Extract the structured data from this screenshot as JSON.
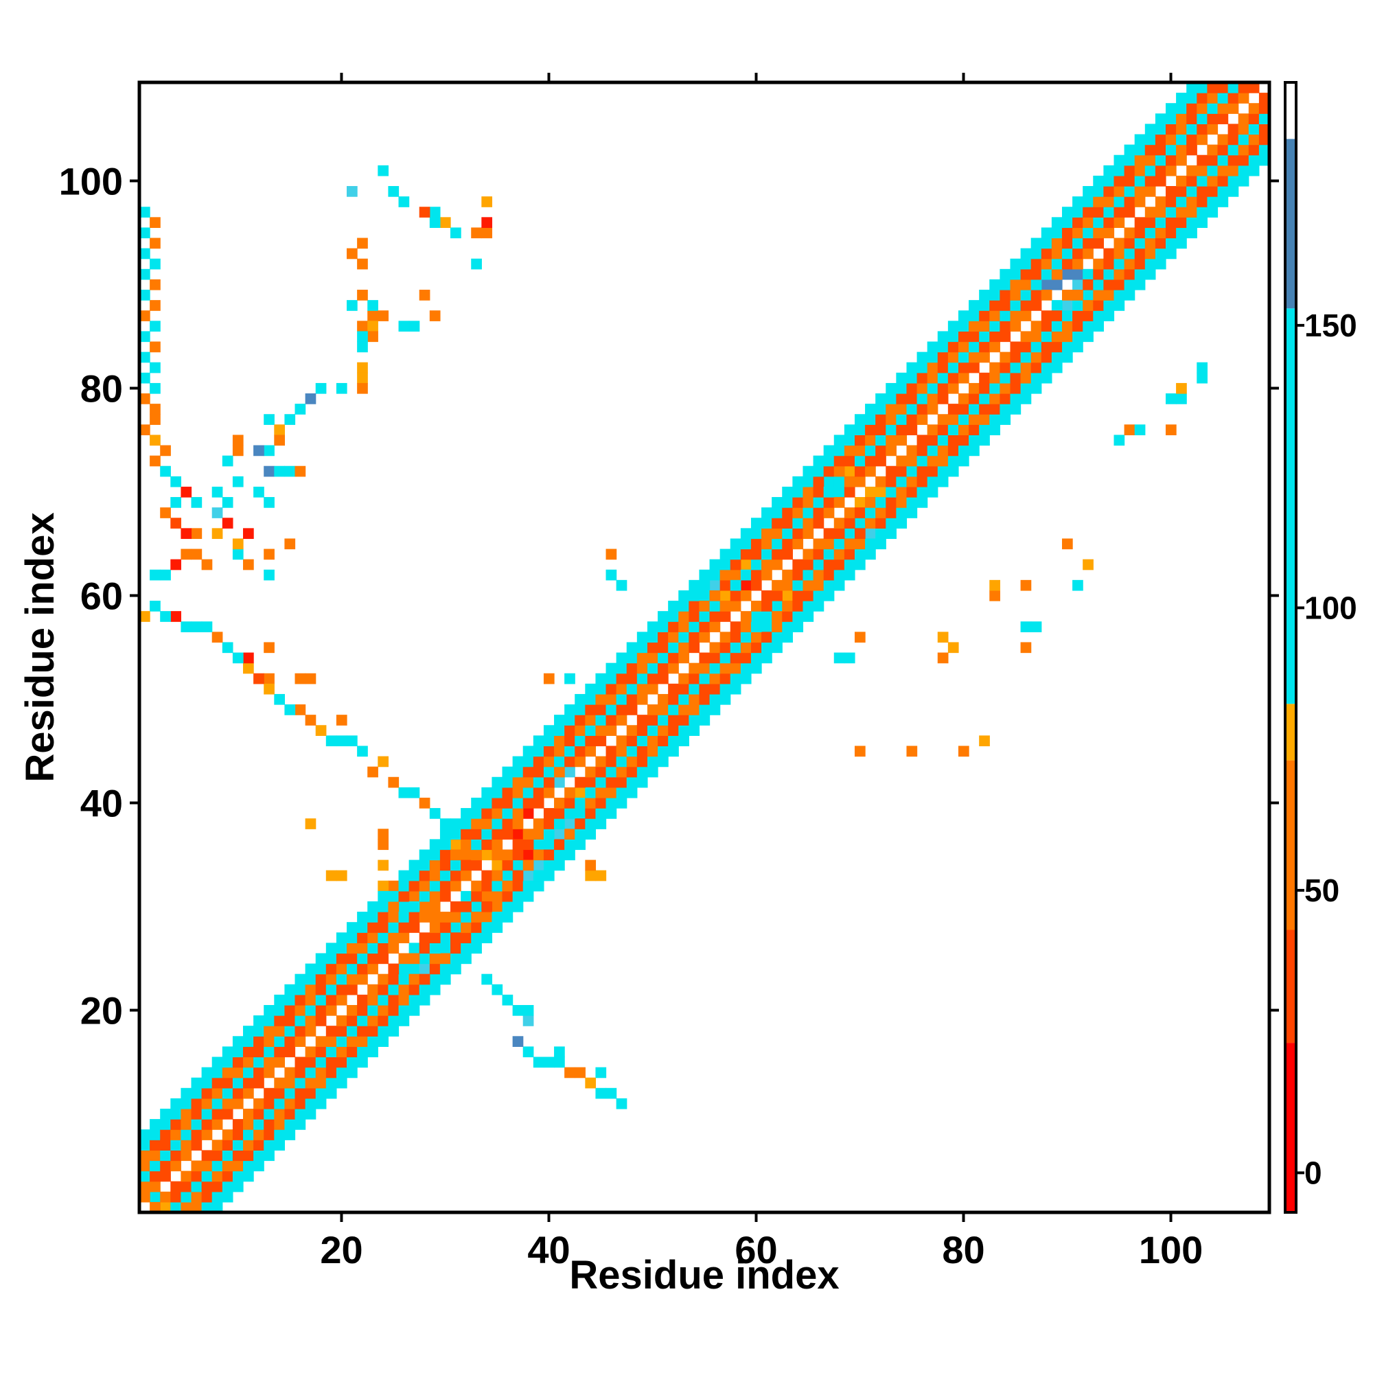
{
  "chart_data": {
    "type": "heatmap",
    "xlabel": "Residue index",
    "ylabel": "Residue index",
    "xlim": [
      1,
      109
    ],
    "ylim": [
      1,
      109
    ],
    "xticks": [
      20,
      40,
      60,
      80,
      100
    ],
    "yticks": [
      20,
      40,
      60,
      80,
      100
    ],
    "colorbar": {
      "ticks": [
        0,
        50,
        100,
        150
      ],
      "range": [
        -7,
        193
      ],
      "segments": [
        {
          "from": -7,
          "to": 23,
          "color": "#ff0000"
        },
        {
          "from": 23,
          "to": 43,
          "color": "#ff4400"
        },
        {
          "from": 43,
          "to": 73,
          "color": "#ff7700"
        },
        {
          "from": 73,
          "to": 83,
          "color": "#ffaa00"
        },
        {
          "from": 83,
          "to": 153,
          "color": "#00e5ee"
        },
        {
          "from": 153,
          "to": 183,
          "color": "#4682b4"
        },
        {
          "from": 183,
          "to": 193,
          "color": "#ffffff"
        }
      ]
    },
    "colors": {
      "red": "#ff1a00",
      "red_orange": "#ff4a00",
      "orange": "#ff7a00",
      "amber": "#ffa500",
      "cyan": "#00e5ee",
      "light_cyan": "#40d0e8",
      "steel_blue": "#4a86c0"
    },
    "legend_colors": [
      "red",
      "red_orange",
      "orange",
      "amber",
      "cyan",
      "light_cyan",
      "steel_blue"
    ],
    "band": {
      "start": 1,
      "end": 109,
      "pattern": [
        {
          "offset": 1,
          "color": "orange"
        },
        {
          "offset": 2,
          "color": "red_orange"
        },
        {
          "offset": 3,
          "color": "cyan"
        },
        {
          "offset": 4,
          "color": "orange"
        },
        {
          "offset": 5,
          "color": "red_orange"
        },
        {
          "offset": 6,
          "color": "cyan"
        },
        {
          "offset": 7,
          "color": "cyan"
        }
      ]
    },
    "cells": [
      [
        2,
        2,
        "cyan"
      ],
      [
        3,
        1,
        "amber"
      ],
      [
        3,
        2,
        "orange"
      ],
      [
        26,
        24,
        "cyan"
      ],
      [
        27,
        24,
        "cyan"
      ],
      [
        28,
        24,
        "light_cyan"
      ],
      [
        28,
        25,
        "cyan"
      ],
      [
        27,
        26,
        "cyan"
      ],
      [
        29,
        23,
        "cyan"
      ],
      [
        36,
        33,
        "cyan"
      ],
      [
        37,
        34,
        "cyan"
      ],
      [
        38,
        33,
        "light_cyan"
      ],
      [
        38,
        35,
        "red"
      ],
      [
        39,
        34,
        "light_cyan"
      ],
      [
        39,
        36,
        "cyan"
      ],
      [
        40,
        36,
        "cyan"
      ],
      [
        41,
        37,
        "light_cyan"
      ],
      [
        42,
        38,
        "light_cyan"
      ],
      [
        43,
        39,
        "cyan"
      ],
      [
        38,
        39,
        "red"
      ],
      [
        37,
        37,
        "red"
      ],
      [
        41,
        42,
        "light_cyan"
      ],
      [
        42,
        43,
        "light_cyan"
      ],
      [
        43,
        41,
        "amber"
      ],
      [
        44,
        42,
        "red_orange"
      ],
      [
        55,
        60,
        "cyan"
      ],
      [
        56,
        61,
        "light_cyan"
      ],
      [
        57,
        60,
        "amber"
      ],
      [
        58,
        62,
        "orange"
      ],
      [
        59,
        61,
        "red"
      ],
      [
        59,
        63,
        "amber"
      ],
      [
        60,
        58,
        "cyan"
      ],
      [
        61,
        57,
        "cyan"
      ],
      [
        62,
        59,
        "cyan"
      ],
      [
        63,
        60,
        "amber"
      ],
      [
        69,
        66,
        "cyan"
      ],
      [
        70,
        67,
        "cyan"
      ],
      [
        71,
        66,
        "light_cyan"
      ],
      [
        70,
        69,
        "amber"
      ],
      [
        71,
        70,
        "amber"
      ],
      [
        72,
        70,
        "amber"
      ],
      [
        68,
        70,
        "cyan"
      ],
      [
        67,
        71,
        "cyan"
      ],
      [
        69,
        72,
        "amber"
      ],
      [
        88,
        90,
        "steel_blue"
      ],
      [
        89,
        90,
        "steel_blue"
      ],
      [
        90,
        91,
        "steel_blue"
      ],
      [
        91,
        90,
        "light_cyan"
      ],
      [
        91,
        91,
        "steel_blue"
      ],
      [
        90,
        88,
        "light_cyan"
      ],
      [
        89,
        88,
        "cyan"
      ],
      [
        92,
        89,
        "cyan"
      ],
      [
        92,
        91,
        "cyan"
      ],
      [
        33,
        92,
        "cyan"
      ],
      [
        33,
        95,
        "orange"
      ],
      [
        34,
        95,
        "orange"
      ],
      [
        34,
        96,
        "red"
      ],
      [
        34,
        98,
        "amber"
      ],
      [
        31,
        95,
        "cyan"
      ],
      [
        30,
        96,
        "amber"
      ],
      [
        29,
        96,
        "cyan"
      ],
      [
        29,
        97,
        "cyan"
      ],
      [
        28,
        97,
        "red_orange"
      ],
      [
        26,
        98,
        "cyan"
      ],
      [
        25,
        99,
        "cyan"
      ],
      [
        21,
        99,
        "light_cyan"
      ],
      [
        24,
        101,
        "cyan"
      ],
      [
        21,
        88,
        "cyan"
      ],
      [
        23,
        87,
        "orange"
      ],
      [
        23,
        88,
        "cyan"
      ],
      [
        24,
        87,
        "orange"
      ],
      [
        22,
        86,
        "orange"
      ],
      [
        23,
        86,
        "amber"
      ],
      [
        23,
        85,
        "orange"
      ],
      [
        22,
        85,
        "cyan"
      ],
      [
        22,
        84,
        "cyan"
      ],
      [
        22,
        82,
        "amber"
      ],
      [
        22,
        81,
        "amber"
      ],
      [
        22,
        80,
        "orange"
      ],
      [
        20,
        80,
        "cyan"
      ],
      [
        18,
        80,
        "cyan"
      ],
      [
        17,
        79,
        "steel_blue"
      ],
      [
        16,
        78,
        "cyan"
      ],
      [
        15,
        77,
        "cyan"
      ],
      [
        13,
        77,
        "cyan"
      ],
      [
        14,
        76,
        "amber"
      ],
      [
        14,
        75,
        "orange"
      ],
      [
        13,
        74,
        "cyan"
      ],
      [
        12,
        74,
        "steel_blue"
      ],
      [
        10,
        74,
        "orange"
      ],
      [
        10,
        75,
        "orange"
      ],
      [
        9,
        73,
        "cyan"
      ],
      [
        10,
        71,
        "cyan"
      ],
      [
        12,
        70,
        "cyan"
      ],
      [
        8,
        70,
        "cyan"
      ],
      [
        8,
        68,
        "light_cyan"
      ],
      [
        9,
        69,
        "cyan"
      ],
      [
        8,
        66,
        "amber"
      ],
      [
        9,
        67,
        "red"
      ],
      [
        6,
        66,
        "orange"
      ],
      [
        15,
        65,
        "orange"
      ],
      [
        13,
        64,
        "orange"
      ],
      [
        11,
        63,
        "orange"
      ],
      [
        10,
        64,
        "cyan"
      ],
      [
        10,
        65,
        "amber"
      ],
      [
        11,
        66,
        "red"
      ],
      [
        13,
        62,
        "cyan"
      ],
      [
        13,
        69,
        "cyan"
      ],
      [
        13,
        72,
        "steel_blue"
      ],
      [
        14,
        72,
        "cyan"
      ],
      [
        15,
        72,
        "cyan"
      ],
      [
        16,
        72,
        "orange"
      ],
      [
        13,
        55,
        "orange"
      ],
      [
        13,
        52,
        "orange"
      ],
      [
        16,
        52,
        "orange"
      ],
      [
        17,
        52,
        "orange"
      ],
      [
        20,
        48,
        "orange"
      ],
      [
        24,
        34,
        "amber"
      ],
      [
        24,
        36,
        "orange"
      ],
      [
        24,
        37,
        "orange"
      ],
      [
        34,
        35,
        "amber"
      ],
      [
        22,
        89,
        "orange"
      ],
      [
        22,
        92,
        "orange"
      ],
      [
        21,
        93,
        "orange"
      ],
      [
        22,
        94,
        "orange"
      ],
      [
        29,
        87,
        "orange"
      ],
      [
        28,
        89,
        "orange"
      ],
      [
        27,
        86,
        "cyan"
      ],
      [
        26,
        86,
        "cyan"
      ],
      [
        17,
        38,
        "amber"
      ],
      [
        19,
        33,
        "amber"
      ],
      [
        20,
        33,
        "amber"
      ],
      [
        45,
        33,
        "amber"
      ],
      [
        44,
        33,
        "amber"
      ],
      [
        44,
        34,
        "orange"
      ],
      [
        40,
        52,
        "orange"
      ],
      [
        42,
        52,
        "cyan"
      ],
      [
        46,
        62,
        "cyan"
      ],
      [
        47,
        61,
        "cyan"
      ],
      [
        46,
        64,
        "orange"
      ],
      [
        68,
        54,
        "cyan"
      ],
      [
        69,
        54,
        "cyan"
      ],
      [
        70,
        56,
        "orange"
      ],
      [
        70,
        45,
        "orange"
      ],
      [
        75,
        45,
        "orange"
      ],
      [
        80,
        45,
        "orange"
      ],
      [
        82,
        46,
        "amber"
      ],
      [
        78,
        54,
        "orange"
      ],
      [
        78,
        56,
        "amber"
      ],
      [
        79,
        55,
        "amber"
      ],
      [
        86,
        55,
        "orange"
      ],
      [
        86,
        57,
        "cyan"
      ],
      [
        87,
        57,
        "cyan"
      ],
      [
        83,
        60,
        "orange"
      ],
      [
        83,
        61,
        "amber"
      ],
      [
        86,
        61,
        "orange"
      ],
      [
        90,
        65,
        "orange"
      ],
      [
        92,
        63,
        "amber"
      ],
      [
        91,
        61,
        "cyan"
      ],
      [
        95,
        75,
        "cyan"
      ],
      [
        96,
        76,
        "orange"
      ],
      [
        97,
        76,
        "cyan"
      ],
      [
        100,
        76,
        "orange"
      ],
      [
        100,
        79,
        "cyan"
      ],
      [
        101,
        79,
        "cyan"
      ],
      [
        101,
        80,
        "amber"
      ],
      [
        103,
        82,
        "cyan"
      ],
      [
        103,
        81,
        "cyan"
      ]
    ],
    "cells_lower": [
      [
        47,
        11,
        "cyan"
      ],
      [
        46,
        12,
        "cyan"
      ],
      [
        45,
        12,
        "cyan"
      ],
      [
        44,
        13,
        "amber"
      ],
      [
        45,
        14,
        "cyan"
      ],
      [
        43,
        14,
        "orange"
      ],
      [
        42,
        14,
        "orange"
      ],
      [
        41,
        15,
        "cyan"
      ],
      [
        40,
        15,
        "cyan"
      ],
      [
        39,
        15,
        "cyan"
      ],
      [
        41,
        16,
        "cyan"
      ],
      [
        38,
        16,
        "cyan"
      ],
      [
        37,
        17,
        "steel_blue"
      ],
      [
        38,
        19,
        "light_cyan"
      ],
      [
        38,
        20,
        "cyan"
      ],
      [
        37,
        20,
        "cyan"
      ],
      [
        36,
        21,
        "cyan"
      ],
      [
        35,
        22,
        "cyan"
      ],
      [
        34,
        23,
        "cyan"
      ],
      [
        30,
        26,
        "cyan"
      ],
      [
        30,
        27,
        "cyan"
      ],
      [
        31,
        28,
        "cyan"
      ],
      [
        29,
        29,
        "orange"
      ],
      [
        28,
        30,
        "orange"
      ],
      [
        27,
        31,
        "orange"
      ],
      [
        25,
        32,
        "orange"
      ],
      [
        24,
        32,
        "amber"
      ],
      [
        26,
        30,
        "cyan"
      ],
      [
        34,
        29,
        "orange"
      ],
      [
        33,
        30,
        "cyan"
      ],
      [
        34,
        31,
        "orange"
      ],
      [
        35,
        30,
        "orange"
      ],
      [
        32,
        31,
        "cyan"
      ],
      [
        36,
        33,
        "orange"
      ],
      [
        35,
        34,
        "amber"
      ],
      [
        33,
        34,
        "red_orange"
      ],
      [
        34,
        35,
        "amber"
      ],
      [
        35,
        35,
        "orange"
      ],
      [
        30,
        38,
        "cyan"
      ],
      [
        31,
        36,
        "amber"
      ],
      [
        32,
        35,
        "orange"
      ],
      [
        29,
        39,
        "cyan"
      ],
      [
        28,
        40,
        "orange"
      ],
      [
        27,
        41,
        "cyan"
      ],
      [
        26,
        41,
        "cyan"
      ],
      [
        25,
        42,
        "orange"
      ],
      [
        23,
        43,
        "orange"
      ],
      [
        24,
        44,
        "amber"
      ],
      [
        22,
        45,
        "cyan"
      ],
      [
        21,
        46,
        "cyan"
      ],
      [
        20,
        46,
        "cyan"
      ],
      [
        19,
        46,
        "cyan"
      ],
      [
        18,
        47,
        "amber"
      ],
      [
        17,
        48,
        "orange"
      ],
      [
        16,
        49,
        "orange"
      ],
      [
        15,
        49,
        "cyan"
      ],
      [
        14,
        50,
        "cyan"
      ],
      [
        13,
        51,
        "amber"
      ],
      [
        12,
        52,
        "red_orange"
      ],
      [
        11,
        53,
        "amber"
      ],
      [
        11,
        54,
        "red"
      ],
      [
        10,
        54,
        "cyan"
      ],
      [
        9,
        55,
        "cyan"
      ],
      [
        8,
        56,
        "orange"
      ],
      [
        7,
        57,
        "cyan"
      ],
      [
        6,
        57,
        "cyan"
      ],
      [
        5,
        57,
        "cyan"
      ],
      [
        4,
        58,
        "red"
      ],
      [
        3,
        58,
        "cyan"
      ],
      [
        2,
        59,
        "cyan"
      ],
      [
        1,
        58,
        "amber"
      ],
      [
        2,
        62,
        "cyan"
      ],
      [
        3,
        62,
        "cyan"
      ],
      [
        4,
        63,
        "red"
      ],
      [
        5,
        64,
        "orange"
      ],
      [
        6,
        64,
        "orange"
      ],
      [
        7,
        63,
        "orange"
      ],
      [
        6,
        66,
        "red_orange"
      ],
      [
        5,
        66,
        "red"
      ],
      [
        4,
        67,
        "red_orange"
      ],
      [
        3,
        68,
        "orange"
      ],
      [
        4,
        69,
        "cyan"
      ],
      [
        6,
        69,
        "cyan"
      ],
      [
        5,
        70,
        "red"
      ],
      [
        4,
        71,
        "cyan"
      ],
      [
        3,
        72,
        "cyan"
      ],
      [
        2,
        73,
        "orange"
      ],
      [
        3,
        74,
        "orange"
      ],
      [
        2,
        75,
        "amber"
      ],
      [
        1,
        76,
        "orange"
      ],
      [
        2,
        77,
        "orange"
      ],
      [
        2,
        78,
        "orange"
      ],
      [
        1,
        79,
        "orange"
      ],
      [
        2,
        80,
        "cyan"
      ],
      [
        1,
        81,
        "cyan"
      ],
      [
        2,
        82,
        "cyan"
      ],
      [
        1,
        83,
        "cyan"
      ],
      [
        2,
        84,
        "orange"
      ],
      [
        1,
        85,
        "cyan"
      ],
      [
        2,
        86,
        "cyan"
      ],
      [
        1,
        87,
        "orange"
      ],
      [
        2,
        88,
        "orange"
      ],
      [
        1,
        89,
        "cyan"
      ],
      [
        2,
        90,
        "orange"
      ],
      [
        1,
        91,
        "cyan"
      ],
      [
        2,
        92,
        "cyan"
      ],
      [
        1,
        93,
        "cyan"
      ],
      [
        2,
        94,
        "orange"
      ],
      [
        1,
        95,
        "cyan"
      ],
      [
        2,
        96,
        "orange"
      ],
      [
        1,
        97,
        "cyan"
      ]
    ]
  }
}
